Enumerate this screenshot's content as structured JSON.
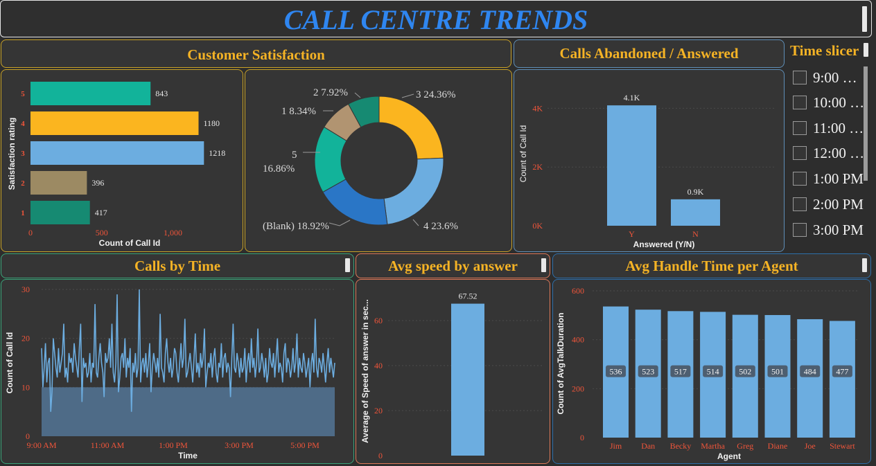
{
  "title": "CALL CENTRE TRENDS",
  "headers": {
    "satisfaction": "Customer Satisfaction",
    "abandoned": "Calls Abandoned / Answered",
    "slicer": "Time slicer",
    "by_time": "Calls by Time",
    "avg_speed": "Avg speed by answer",
    "handle": "Avg Handle Time per Agent"
  },
  "slicer": {
    "items": [
      "9:00 …",
      "10:00 …",
      "11:00 …",
      "12:00 …",
      "1:00 PM",
      "2:00 PM",
      "3:00 PM"
    ]
  },
  "colors": {
    "accent": "#f5b325",
    "title_blue": "#2f86f0",
    "bar_blue": "#6cade0",
    "tick_red": "#f0553a"
  },
  "chart_data": [
    {
      "id": "satisfaction_bar",
      "type": "bar",
      "orientation": "horizontal",
      "categories": [
        "5",
        "4",
        "3",
        "2",
        "1"
      ],
      "values": [
        843,
        1180,
        1218,
        396,
        417
      ],
      "bar_colors": [
        "#12b39a",
        "#fbb51f",
        "#6cade0",
        "#9c8a63",
        "#168a72"
      ],
      "xlabel": "Count of Call Id",
      "ylabel": "Satisfaction rating",
      "xticks": [
        "0",
        "500",
        "1,000"
      ],
      "xlim": [
        0,
        1300
      ]
    },
    {
      "id": "satisfaction_donut",
      "type": "pie",
      "labels": [
        "3",
        "4",
        "(Blank)",
        "5",
        "1",
        "2"
      ],
      "values": [
        24.36,
        23.6,
        18.92,
        16.86,
        8.34,
        7.92
      ],
      "display_labels": [
        "3 24.36%",
        "4 23.6%",
        "(Blank) 18.92%",
        "5",
        "16.86%",
        "1 8.34%",
        "2 7.92%"
      ],
      "colors": [
        "#fbb51f",
        "#6cade0",
        "#2a76c6",
        "#12b39a",
        "#b19471",
        "#168a72"
      ]
    },
    {
      "id": "abandoned_bar",
      "type": "bar",
      "categories": [
        "Y",
        "N"
      ],
      "values": [
        4.1,
        0.9
      ],
      "data_labels": [
        "4.1K",
        "0.9K"
      ],
      "xlabel": "Answered (Y/N)",
      "ylabel": "Count of Call Id",
      "yticks": [
        "0K",
        "2K",
        "4K"
      ],
      "ylim": [
        0,
        4.5
      ]
    },
    {
      "id": "calls_by_time",
      "type": "area",
      "xlabel": "Time",
      "ylabel": "Count of Call Id",
      "xticks": [
        "9:00 AM",
        "11:00 AM",
        "1:00 PM",
        "3:00 PM",
        "5:00 PM"
      ],
      "yticks": [
        "0",
        "10",
        "20",
        "30"
      ],
      "ylim": [
        0,
        30
      ],
      "values": [
        18,
        10,
        14,
        19,
        11,
        15,
        16,
        5,
        9,
        20,
        17,
        14,
        12,
        18,
        13,
        15,
        17,
        23,
        12,
        14,
        11,
        17,
        15,
        16,
        13,
        19,
        16,
        14,
        12,
        18,
        23,
        7,
        16,
        14,
        15,
        12,
        13,
        17,
        11,
        15,
        14,
        27,
        13,
        12,
        16,
        19,
        15,
        13,
        8,
        17,
        15,
        16,
        20,
        14,
        23,
        13,
        11,
        15,
        29,
        9,
        12,
        16,
        17,
        14,
        20,
        12,
        16,
        14,
        18,
        5,
        15,
        13,
        17,
        12,
        14,
        30,
        11,
        15,
        16,
        13,
        17,
        12,
        15,
        19,
        9,
        14,
        17,
        15,
        13,
        16,
        12,
        25,
        14,
        13,
        11,
        17,
        20,
        15,
        13,
        16,
        12,
        14,
        18,
        17,
        13,
        11,
        15,
        19,
        14,
        16,
        24,
        12,
        13,
        15,
        17,
        14,
        11,
        16,
        21,
        13,
        15,
        12,
        17,
        14,
        16,
        22,
        10,
        13,
        15,
        14,
        17,
        12,
        16,
        18,
        13,
        11,
        15,
        14,
        19,
        12,
        16,
        17,
        13,
        15,
        14,
        8,
        16,
        23,
        14,
        13,
        17,
        15,
        12,
        16,
        13,
        14,
        18,
        11,
        15,
        17,
        13,
        20,
        14,
        16,
        12,
        15,
        22,
        13,
        14,
        17,
        15,
        12,
        16,
        11,
        13,
        18,
        15,
        14,
        17,
        12,
        16,
        20,
        13,
        15,
        14,
        11,
        17,
        19,
        13,
        16,
        15,
        12,
        14,
        18,
        13,
        15,
        21,
        12,
        16,
        14,
        13,
        17,
        15,
        12,
        14,
        16,
        10,
        15,
        17,
        13,
        24,
        14,
        12,
        16,
        15,
        13,
        17,
        14,
        11,
        15,
        18,
        13,
        16,
        14,
        12,
        15
      ]
    },
    {
      "id": "avg_speed",
      "type": "bar",
      "categories": [
        ""
      ],
      "values": [
        67.52
      ],
      "data_labels": [
        "67.52"
      ],
      "ylabel": "Average of Speed of answer in sec...",
      "yticks": [
        "0",
        "20",
        "40",
        "60"
      ],
      "ylim": [
        0,
        72
      ]
    },
    {
      "id": "handle_time",
      "type": "bar",
      "categories": [
        "Jim",
        "Dan",
        "Becky",
        "Martha",
        "Greg",
        "Diane",
        "Joe",
        "Stewart"
      ],
      "values": [
        536,
        523,
        517,
        514,
        502,
        501,
        484,
        477
      ],
      "xlabel": "Agent",
      "ylabel": "Count of AvgTalkDuration",
      "yticks": [
        "0",
        "200",
        "400",
        "600"
      ],
      "ylim": [
        0,
        620
      ]
    }
  ]
}
